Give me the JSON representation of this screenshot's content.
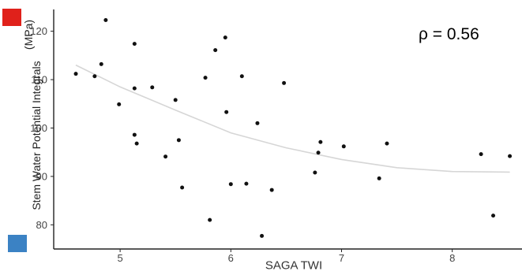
{
  "colors": {
    "marker_top": "#e0211b",
    "marker_bottom": "#3b82c4",
    "point": "#111111",
    "trend": "#d6d6d6",
    "axis": "#222222"
  },
  "chart_data": {
    "type": "scatter",
    "xlabel": "SAGA TWI",
    "ylabel": "Stem Water Potential Integrals",
    "ylabel_unit": "(MPa)",
    "annotation": "ρ = 0.56",
    "xlim": [
      4.4,
      8.63
    ],
    "ylim": [
      75,
      124.5
    ],
    "xticks": [
      5,
      6,
      7,
      8
    ],
    "yticks": [
      80,
      90,
      100,
      110,
      120
    ],
    "grid": false,
    "legend": "none",
    "points": [
      {
        "x": 4.6,
        "y": 111.2
      },
      {
        "x": 4.77,
        "y": 110.7
      },
      {
        "x": 4.83,
        "y": 113.2
      },
      {
        "x": 4.87,
        "y": 122.3
      },
      {
        "x": 4.99,
        "y": 104.9
      },
      {
        "x": 5.13,
        "y": 117.4
      },
      {
        "x": 5.13,
        "y": 108.2
      },
      {
        "x": 5.13,
        "y": 98.6
      },
      {
        "x": 5.15,
        "y": 96.8
      },
      {
        "x": 5.29,
        "y": 108.4
      },
      {
        "x": 5.41,
        "y": 94.1
      },
      {
        "x": 5.5,
        "y": 105.8
      },
      {
        "x": 5.53,
        "y": 97.5
      },
      {
        "x": 5.56,
        "y": 87.7
      },
      {
        "x": 5.77,
        "y": 110.4
      },
      {
        "x": 5.81,
        "y": 81.0
      },
      {
        "x": 5.86,
        "y": 116.1
      },
      {
        "x": 5.95,
        "y": 118.7
      },
      {
        "x": 5.96,
        "y": 103.3
      },
      {
        "x": 6.0,
        "y": 88.4
      },
      {
        "x": 6.1,
        "y": 110.7
      },
      {
        "x": 6.14,
        "y": 88.5
      },
      {
        "x": 6.24,
        "y": 101.0
      },
      {
        "x": 6.28,
        "y": 77.7
      },
      {
        "x": 6.37,
        "y": 87.2
      },
      {
        "x": 6.48,
        "y": 109.3
      },
      {
        "x": 6.76,
        "y": 90.8
      },
      {
        "x": 6.79,
        "y": 94.9
      },
      {
        "x": 6.81,
        "y": 97.1
      },
      {
        "x": 7.02,
        "y": 96.2
      },
      {
        "x": 7.34,
        "y": 89.6
      },
      {
        "x": 7.41,
        "y": 96.8
      },
      {
        "x": 8.26,
        "y": 94.6
      },
      {
        "x": 8.37,
        "y": 81.9
      },
      {
        "x": 8.52,
        "y": 94.2
      }
    ],
    "trend": [
      {
        "x": 4.6,
        "y": 113.0
      },
      {
        "x": 5.0,
        "y": 108.5
      },
      {
        "x": 5.5,
        "y": 103.7
      },
      {
        "x": 6.0,
        "y": 99.0
      },
      {
        "x": 6.5,
        "y": 95.9
      },
      {
        "x": 7.0,
        "y": 93.5
      },
      {
        "x": 7.5,
        "y": 91.8
      },
      {
        "x": 8.0,
        "y": 91.0
      },
      {
        "x": 8.52,
        "y": 90.9
      }
    ]
  }
}
